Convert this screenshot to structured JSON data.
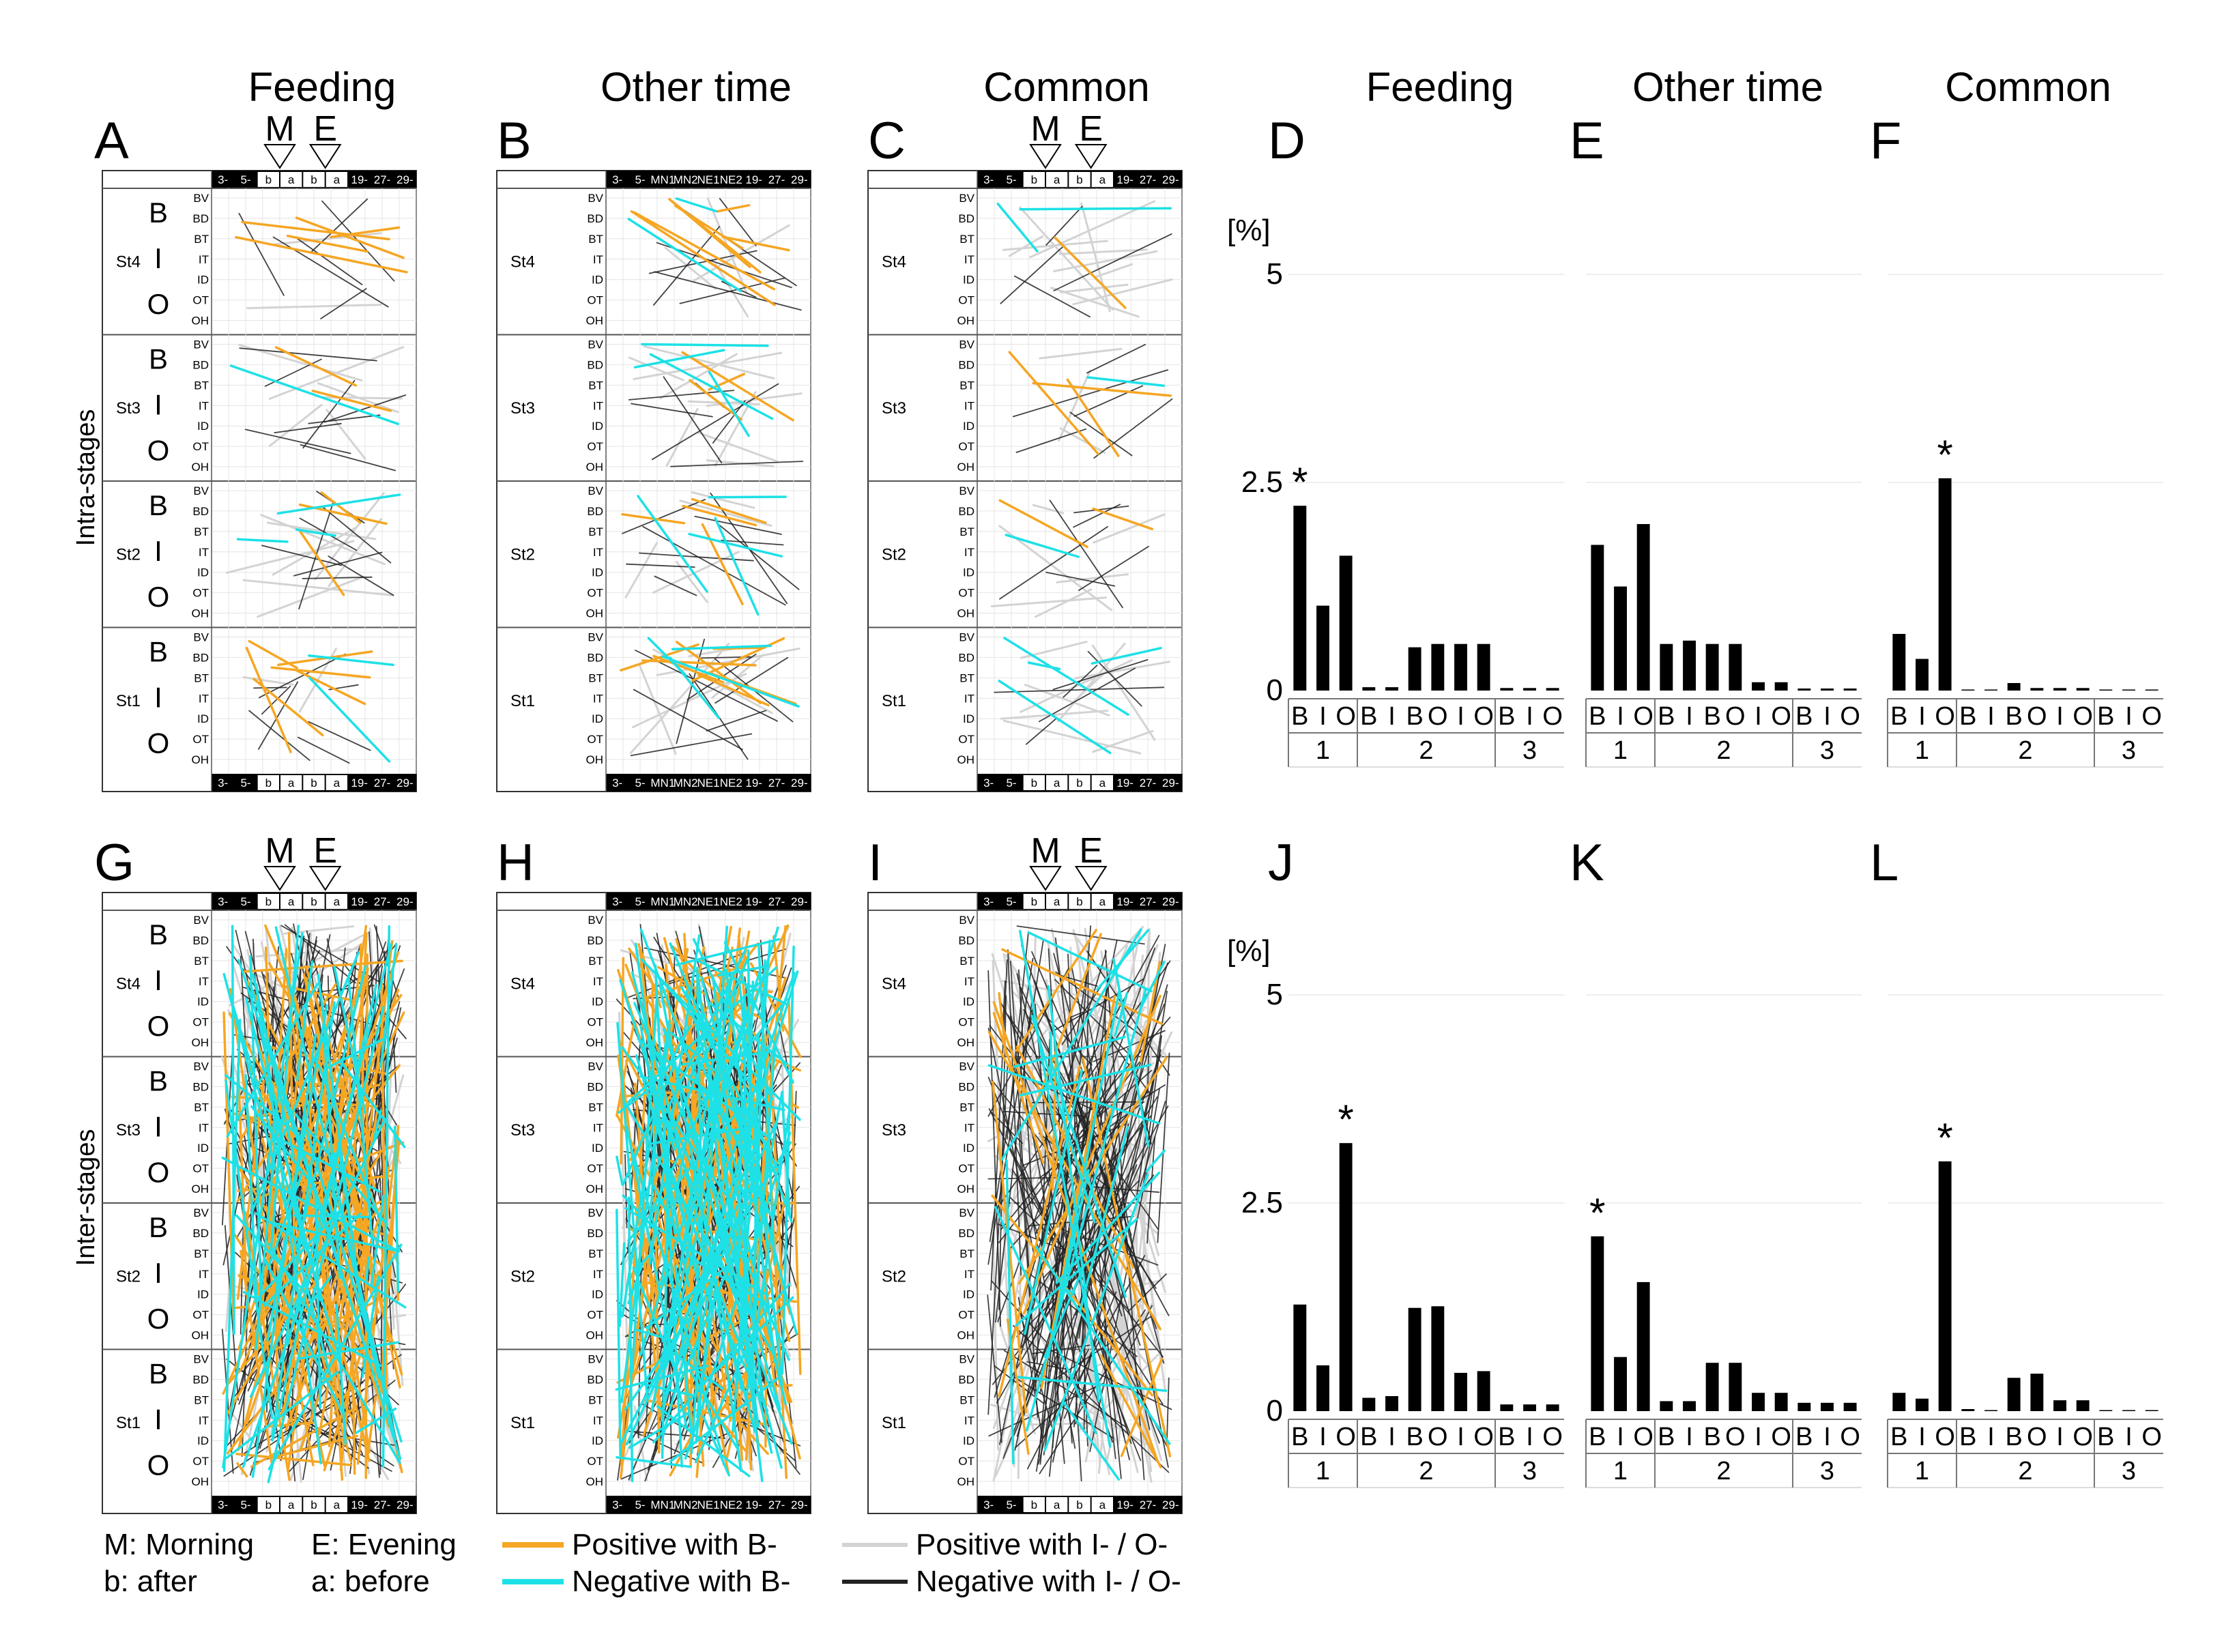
{
  "colors": {
    "positive_B": "#F5A623",
    "negative_B": "#1DE1E6",
    "positive_IO": "#D3D3D3",
    "negative_IO": "#222222",
    "header_bg": "#000000",
    "grid": "#E4E4E4",
    "bar": "#000000"
  },
  "column_titles": [
    "Feeding",
    "Other time",
    "Common",
    "Feeding",
    "Other time",
    "Common"
  ],
  "panel_letters": [
    "A",
    "B",
    "C",
    "D",
    "E",
    "F",
    "G",
    "H",
    "I",
    "J",
    "K",
    "L"
  ],
  "row_titles": [
    "Intra-stages",
    "Inter-stages"
  ],
  "time_markers": {
    "morning": "M",
    "evening": "E"
  },
  "header_labels_feeding": [
    "3-",
    "5-",
    "b",
    "a",
    "b",
    "a",
    "19-",
    "27-",
    "29-"
  ],
  "header_labels_other": [
    "3-",
    "5-",
    "MN1",
    "MN2",
    "NE1",
    "NE2",
    "19-",
    "27-",
    "29-"
  ],
  "stages": [
    "St4",
    "St3",
    "St2",
    "St1"
  ],
  "groups": [
    "B",
    "I",
    "O"
  ],
  "regions": [
    "BV",
    "BD",
    "BT",
    "IT",
    "ID",
    "OT",
    "OH"
  ],
  "legend": {
    "m": "M: Morning",
    "b": "b: after",
    "e": "E: Evening",
    "a": "a: before",
    "pos_b": "Positive with B-",
    "neg_b": "Negative with B-",
    "pos_io": "Positive with I- / O-",
    "neg_io": "Negative with I- / O-"
  },
  "chart_data": [
    {
      "panel": "D",
      "type": "bar",
      "title": "Feeding",
      "ylabel": "[%]",
      "ylim": [
        0,
        5
      ],
      "yticks": [
        "0",
        "2.5",
        "5"
      ],
      "categories": [
        "B",
        "I",
        "O",
        "B",
        "I",
        "B",
        "O",
        "I",
        "O",
        "B",
        "I",
        "O"
      ],
      "groups": [
        {
          "label": "1",
          "categories": [
            "B",
            "I",
            "O"
          ]
        },
        {
          "label": "2",
          "categories": [
            "B",
            "I",
            "B",
            "O",
            "I",
            "O"
          ]
        },
        {
          "label": "3",
          "categories": [
            "B",
            "I",
            "O"
          ]
        }
      ],
      "values": [
        2.22,
        1.02,
        1.62,
        0.04,
        0.04,
        0.52,
        0.56,
        0.56,
        0.56,
        0.03,
        0.03,
        0.03
      ],
      "annotations": [
        {
          "index": 0,
          "text": "*"
        }
      ]
    },
    {
      "panel": "E",
      "type": "bar",
      "title": "Other time",
      "ylabel": "[%]",
      "ylim": [
        0,
        5
      ],
      "yticks": [
        "0",
        "2.5",
        "5"
      ],
      "categories": [
        "B",
        "I",
        "O",
        "B",
        "I",
        "B",
        "O",
        "I",
        "O",
        "B",
        "I",
        "O"
      ],
      "groups": [
        {
          "label": "1",
          "categories": [
            "B",
            "I",
            "O"
          ]
        },
        {
          "label": "2",
          "categories": [
            "B",
            "I",
            "B",
            "O",
            "I",
            "O"
          ]
        },
        {
          "label": "3",
          "categories": [
            "B",
            "I",
            "O"
          ]
        }
      ],
      "values": [
        1.75,
        1.25,
        2.0,
        0.56,
        0.6,
        0.56,
        0.56,
        0.1,
        0.1,
        0.02,
        0.02,
        0.02
      ],
      "annotations": []
    },
    {
      "panel": "F",
      "type": "bar",
      "title": "Common",
      "ylabel": "[%]",
      "ylim": [
        0,
        5
      ],
      "yticks": [
        "0",
        "2.5",
        "5"
      ],
      "categories": [
        "B",
        "I",
        "O",
        "B",
        "I",
        "B",
        "O",
        "I",
        "O",
        "B",
        "I",
        "O"
      ],
      "groups": [
        {
          "label": "1",
          "categories": [
            "B",
            "I",
            "O"
          ]
        },
        {
          "label": "2",
          "categories": [
            "B",
            "I",
            "B",
            "O",
            "I",
            "O"
          ]
        },
        {
          "label": "3",
          "categories": [
            "B",
            "I",
            "O"
          ]
        }
      ],
      "values": [
        0.68,
        0.38,
        2.55,
        0.0,
        0.0,
        0.09,
        0.03,
        0.03,
        0.03,
        0.0,
        0.0,
        0.0
      ],
      "annotations": [
        {
          "index": 2,
          "text": "*"
        }
      ]
    },
    {
      "panel": "J",
      "type": "bar",
      "title": "Feeding",
      "ylabel": "[%]",
      "ylim": [
        0,
        5
      ],
      "yticks": [
        "0",
        "2.5",
        "5"
      ],
      "categories": [
        "B",
        "I",
        "O",
        "B",
        "I",
        "B",
        "O",
        "I",
        "O",
        "B",
        "I",
        "O"
      ],
      "groups": [
        {
          "label": "1",
          "categories": [
            "B",
            "I",
            "O"
          ]
        },
        {
          "label": "2",
          "categories": [
            "B",
            "I",
            "B",
            "O",
            "I",
            "O"
          ]
        },
        {
          "label": "3",
          "categories": [
            "B",
            "I",
            "O"
          ]
        }
      ],
      "values": [
        1.28,
        0.55,
        3.22,
        0.16,
        0.18,
        1.24,
        1.26,
        0.46,
        0.48,
        0.08,
        0.08,
        0.08
      ],
      "annotations": [
        {
          "index": 2,
          "text": "*"
        }
      ]
    },
    {
      "panel": "K",
      "type": "bar",
      "title": "Other time",
      "ylabel": "[%]",
      "ylim": [
        0,
        5
      ],
      "yticks": [
        "0",
        "2.5",
        "5"
      ],
      "categories": [
        "B",
        "I",
        "O",
        "B",
        "I",
        "B",
        "O",
        "I",
        "O",
        "B",
        "I",
        "O"
      ],
      "groups": [
        {
          "label": "1",
          "categories": [
            "B",
            "I",
            "O"
          ]
        },
        {
          "label": "2",
          "categories": [
            "B",
            "I",
            "B",
            "O",
            "I",
            "O"
          ]
        },
        {
          "label": "3",
          "categories": [
            "B",
            "I",
            "O"
          ]
        }
      ],
      "values": [
        2.1,
        0.65,
        1.55,
        0.12,
        0.12,
        0.58,
        0.58,
        0.22,
        0.22,
        0.1,
        0.1,
        0.1
      ],
      "annotations": [
        {
          "index": 0,
          "text": "*"
        }
      ]
    },
    {
      "panel": "L",
      "type": "bar",
      "title": "Common",
      "ylabel": "[%]",
      "ylim": [
        0,
        5
      ],
      "yticks": [
        "0",
        "2.5",
        "5"
      ],
      "categories": [
        "B",
        "I",
        "O",
        "B",
        "I",
        "B",
        "O",
        "I",
        "O",
        "B",
        "I",
        "O"
      ],
      "groups": [
        {
          "label": "1",
          "categories": [
            "B",
            "I",
            "O"
          ]
        },
        {
          "label": "2",
          "categories": [
            "B",
            "I",
            "B",
            "O",
            "I",
            "O"
          ]
        },
        {
          "label": "3",
          "categories": [
            "B",
            "I",
            "O"
          ]
        }
      ],
      "values": [
        0.22,
        0.15,
        3.0,
        0.02,
        0.0,
        0.4,
        0.45,
        0.13,
        0.13,
        0.0,
        0.0,
        0.0
      ],
      "annotations": [
        {
          "index": 2,
          "text": "*"
        }
      ]
    }
  ],
  "line_panels": [
    {
      "panel": "A",
      "header": "feeding",
      "markers": true,
      "density": {
        "pos_b": 16,
        "neg_b": 6,
        "pos_io": 18,
        "neg_io": 30
      },
      "scope": "intra"
    },
    {
      "panel": "B",
      "header": "other",
      "markers": false,
      "density": {
        "pos_b": 22,
        "neg_b": 14,
        "pos_io": 26,
        "neg_io": 34
      },
      "scope": "intra"
    },
    {
      "panel": "C",
      "header": "feeding",
      "markers": true,
      "density": {
        "pos_b": 6,
        "neg_b": 8,
        "pos_io": 30,
        "neg_io": 22
      },
      "scope": "intra"
    },
    {
      "panel": "G",
      "header": "feeding",
      "markers": true,
      "density": {
        "pos_b": 110,
        "neg_b": 70,
        "pos_io": 90,
        "neg_io": 180
      },
      "scope": "inter"
    },
    {
      "panel": "H",
      "header": "other",
      "markers": false,
      "density": {
        "pos_b": 100,
        "neg_b": 140,
        "pos_io": 80,
        "neg_io": 150
      },
      "scope": "inter"
    },
    {
      "panel": "I",
      "header": "feeding",
      "markers": true,
      "density": {
        "pos_b": 20,
        "neg_b": 30,
        "pos_io": 110,
        "neg_io": 170
      },
      "scope": "inter"
    }
  ]
}
